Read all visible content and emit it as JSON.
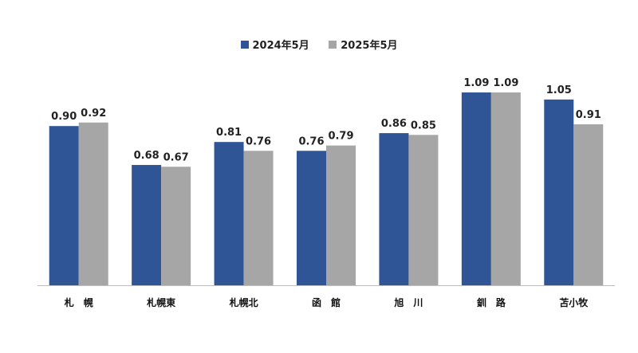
{
  "chart_data": {
    "type": "bar",
    "categories": [
      "札　幌",
      "札幌東",
      "札幌北",
      "函　館",
      "旭　川",
      "釧　路",
      "苫小牧"
    ],
    "series": [
      {
        "name": "2024年5月",
        "values": [
          0.9,
          0.68,
          0.81,
          0.76,
          0.86,
          1.09,
          1.05
        ],
        "labels": [
          "0.90",
          "0.68",
          "0.81",
          "0.76",
          "0.86",
          "1.09",
          "1.05"
        ]
      },
      {
        "name": "2025年5月",
        "values": [
          0.92,
          0.67,
          0.76,
          0.79,
          0.85,
          1.09,
          0.91
        ],
        "labels": [
          "0.92",
          "0.67",
          "0.76",
          "0.79",
          "0.85",
          "1.09",
          "0.91"
        ]
      }
    ],
    "ylim": [
      0,
      1.2
    ],
    "grid": false,
    "legend_position": "top-center",
    "colors": [
      "#2f5597",
      "#a6a6a6"
    ]
  }
}
